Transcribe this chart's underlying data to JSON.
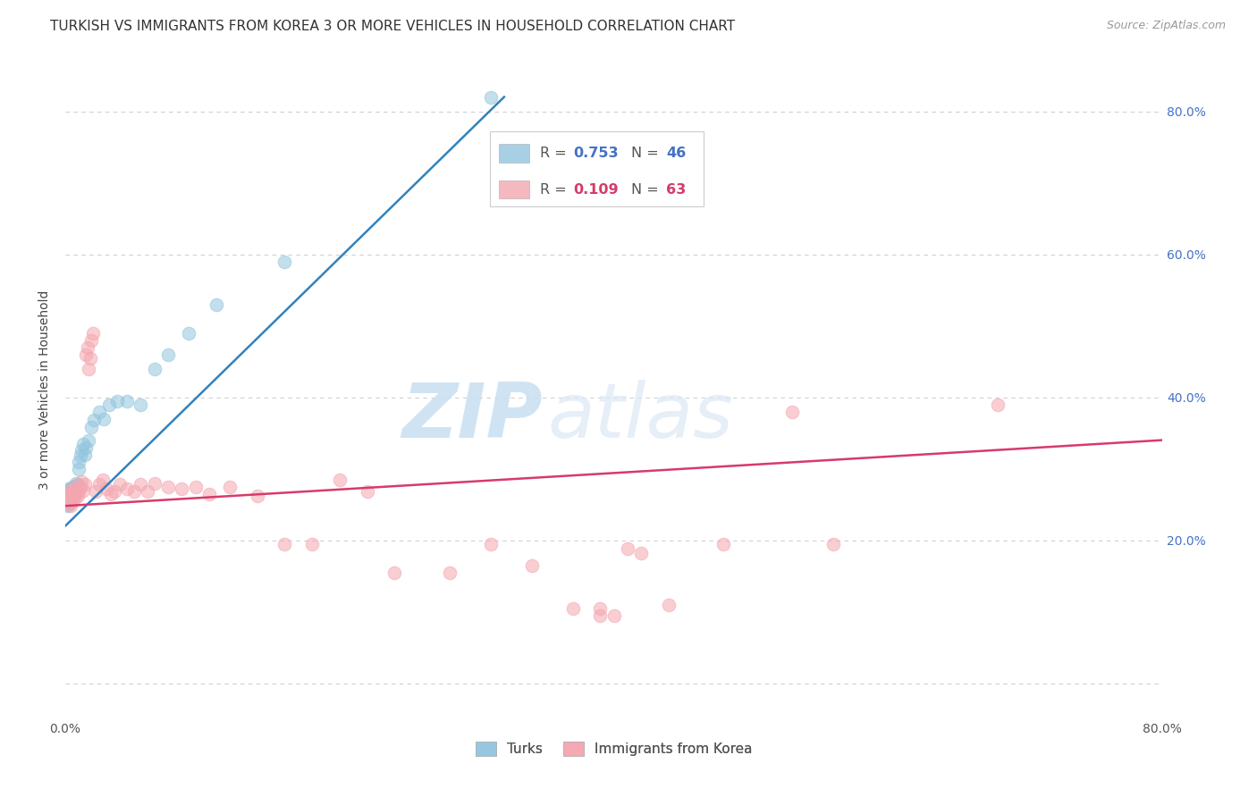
{
  "title": "TURKISH VS IMMIGRANTS FROM KOREA 3 OR MORE VEHICLES IN HOUSEHOLD CORRELATION CHART",
  "source": "Source: ZipAtlas.com",
  "ylabel": "3 or more Vehicles in Household",
  "xlim": [
    0.0,
    0.8
  ],
  "ylim": [
    -0.05,
    0.87
  ],
  "ytick_values": [
    0.0,
    0.2,
    0.4,
    0.6,
    0.8
  ],
  "right_ytick_labels": [
    "20.0%",
    "40.0%",
    "60.0%",
    "80.0%"
  ],
  "right_ytick_values": [
    0.2,
    0.4,
    0.6,
    0.8
  ],
  "legend_blue_R": "0.753",
  "legend_blue_N": "46",
  "legend_pink_R": "0.109",
  "legend_pink_N": "63",
  "legend_label_blue": "Turks",
  "legend_label_pink": "Immigrants from Korea",
  "blue_color": "#92c5de",
  "pink_color": "#f4a6b0",
  "blue_line_color": "#3182bd",
  "pink_line_color": "#d63b6a",
  "watermark_zip": "ZIP",
  "watermark_atlas": "atlas",
  "blue_scatter_x": [
    0.001,
    0.001,
    0.001,
    0.001,
    0.002,
    0.002,
    0.002,
    0.002,
    0.003,
    0.003,
    0.003,
    0.004,
    0.004,
    0.004,
    0.005,
    0.005,
    0.005,
    0.006,
    0.006,
    0.007,
    0.007,
    0.008,
    0.008,
    0.009,
    0.01,
    0.01,
    0.011,
    0.012,
    0.013,
    0.014,
    0.015,
    0.017,
    0.019,
    0.021,
    0.025,
    0.028,
    0.032,
    0.038,
    0.045,
    0.055,
    0.065,
    0.075,
    0.09,
    0.11,
    0.16,
    0.31
  ],
  "blue_scatter_y": [
    0.25,
    0.262,
    0.27,
    0.255,
    0.248,
    0.258,
    0.265,
    0.272,
    0.252,
    0.26,
    0.268,
    0.256,
    0.264,
    0.272,
    0.258,
    0.266,
    0.274,
    0.262,
    0.27,
    0.268,
    0.276,
    0.272,
    0.28,
    0.278,
    0.3,
    0.31,
    0.318,
    0.326,
    0.334,
    0.32,
    0.33,
    0.34,
    0.358,
    0.368,
    0.38,
    0.37,
    0.39,
    0.395,
    0.395,
    0.39,
    0.44,
    0.46,
    0.49,
    0.53,
    0.59,
    0.82
  ],
  "pink_scatter_x": [
    0.001,
    0.001,
    0.002,
    0.002,
    0.003,
    0.003,
    0.004,
    0.004,
    0.005,
    0.005,
    0.006,
    0.007,
    0.008,
    0.008,
    0.009,
    0.01,
    0.011,
    0.012,
    0.013,
    0.014,
    0.015,
    0.016,
    0.017,
    0.018,
    0.019,
    0.02,
    0.022,
    0.025,
    0.027,
    0.03,
    0.033,
    0.036,
    0.04,
    0.045,
    0.05,
    0.055,
    0.06,
    0.065,
    0.075,
    0.085,
    0.095,
    0.105,
    0.12,
    0.14,
    0.16,
    0.18,
    0.2,
    0.22,
    0.24,
    0.28,
    0.31,
    0.34,
    0.37,
    0.39,
    0.39,
    0.4,
    0.41,
    0.42,
    0.44,
    0.48,
    0.53,
    0.56,
    0.68
  ],
  "pink_scatter_y": [
    0.258,
    0.262,
    0.255,
    0.268,
    0.252,
    0.265,
    0.248,
    0.26,
    0.255,
    0.268,
    0.272,
    0.26,
    0.265,
    0.275,
    0.262,
    0.268,
    0.275,
    0.282,
    0.27,
    0.278,
    0.46,
    0.47,
    0.44,
    0.455,
    0.48,
    0.49,
    0.268,
    0.278,
    0.285,
    0.272,
    0.265,
    0.268,
    0.278,
    0.272,
    0.268,
    0.278,
    0.268,
    0.28,
    0.275,
    0.272,
    0.275,
    0.265,
    0.275,
    0.262,
    0.195,
    0.195,
    0.285,
    0.268,
    0.155,
    0.155,
    0.195,
    0.165,
    0.105,
    0.095,
    0.105,
    0.095,
    0.188,
    0.182,
    0.11,
    0.195,
    0.38,
    0.195,
    0.39
  ],
  "blue_line_x": [
    0.0,
    0.32
  ],
  "blue_line_y": [
    0.22,
    0.82
  ],
  "pink_line_x": [
    0.0,
    0.8
  ],
  "pink_line_y": [
    0.248,
    0.34
  ],
  "grid_color": "#d0d0d0",
  "background_color": "#ffffff",
  "title_fontsize": 11,
  "axis_label_fontsize": 10,
  "tick_fontsize": 10
}
